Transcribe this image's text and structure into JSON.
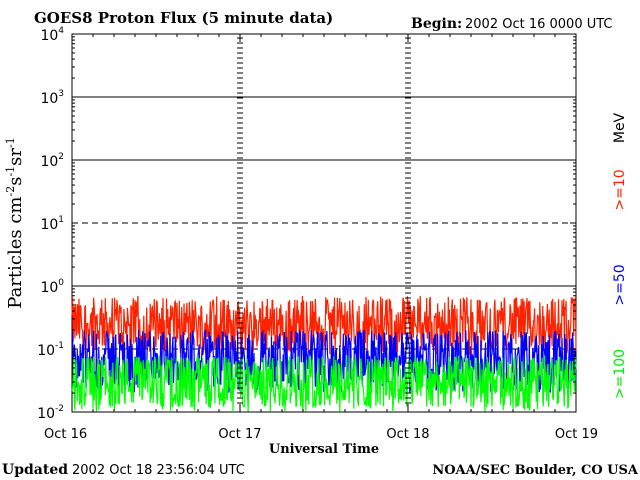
{
  "chart_data": {
    "type": "line",
    "title": "GOES8 Proton Flux (5 minute data)",
    "begin_label": "Begin:",
    "begin_value": "2002 Oct 16 0000 UTC",
    "ylabel": "Particles cm",
    "ylabel_sup1": "-2",
    "ylabel_mid1": "s",
    "ylabel_sup2": "-1",
    "ylabel_mid2": "sr",
    "ylabel_sup3": "-1",
    "xlabel": "Universal Time",
    "x_tick_labels": [
      "Oct 16",
      "Oct 17",
      "Oct 18",
      "Oct 19"
    ],
    "x_range_days": [
      0,
      3
    ],
    "y_scale": "log",
    "ylim": [
      0.01,
      10000
    ],
    "y_tick_values": [
      0.01,
      0.1,
      1,
      10,
      100,
      1000,
      10000
    ],
    "y_tick_base": "10",
    "y_tick_exponents": [
      "-2",
      "-1",
      "0",
      "1",
      "2",
      "3",
      "4"
    ],
    "threshold_dashed_lines": [
      10,
      0.1
    ],
    "energy_unit": "MeV",
    "series": [
      {
        "name": ">=10",
        "color": "#ff2200",
        "typical_value": 0.25,
        "range": [
          0.08,
          0.7
        ]
      },
      {
        "name": ">=50",
        "color": "#0000ff",
        "typical_value": 0.07,
        "range": [
          0.02,
          0.2
        ]
      },
      {
        "name": ">=100",
        "color": "#00ff00",
        "typical_value": 0.03,
        "range": [
          0.01,
          0.08
        ]
      }
    ]
  },
  "footer": {
    "updated_label": "Updated",
    "updated_value": "2002 Oct 18 23:56:04 UTC",
    "credit": "NOAA/SEC Boulder, CO USA"
  }
}
